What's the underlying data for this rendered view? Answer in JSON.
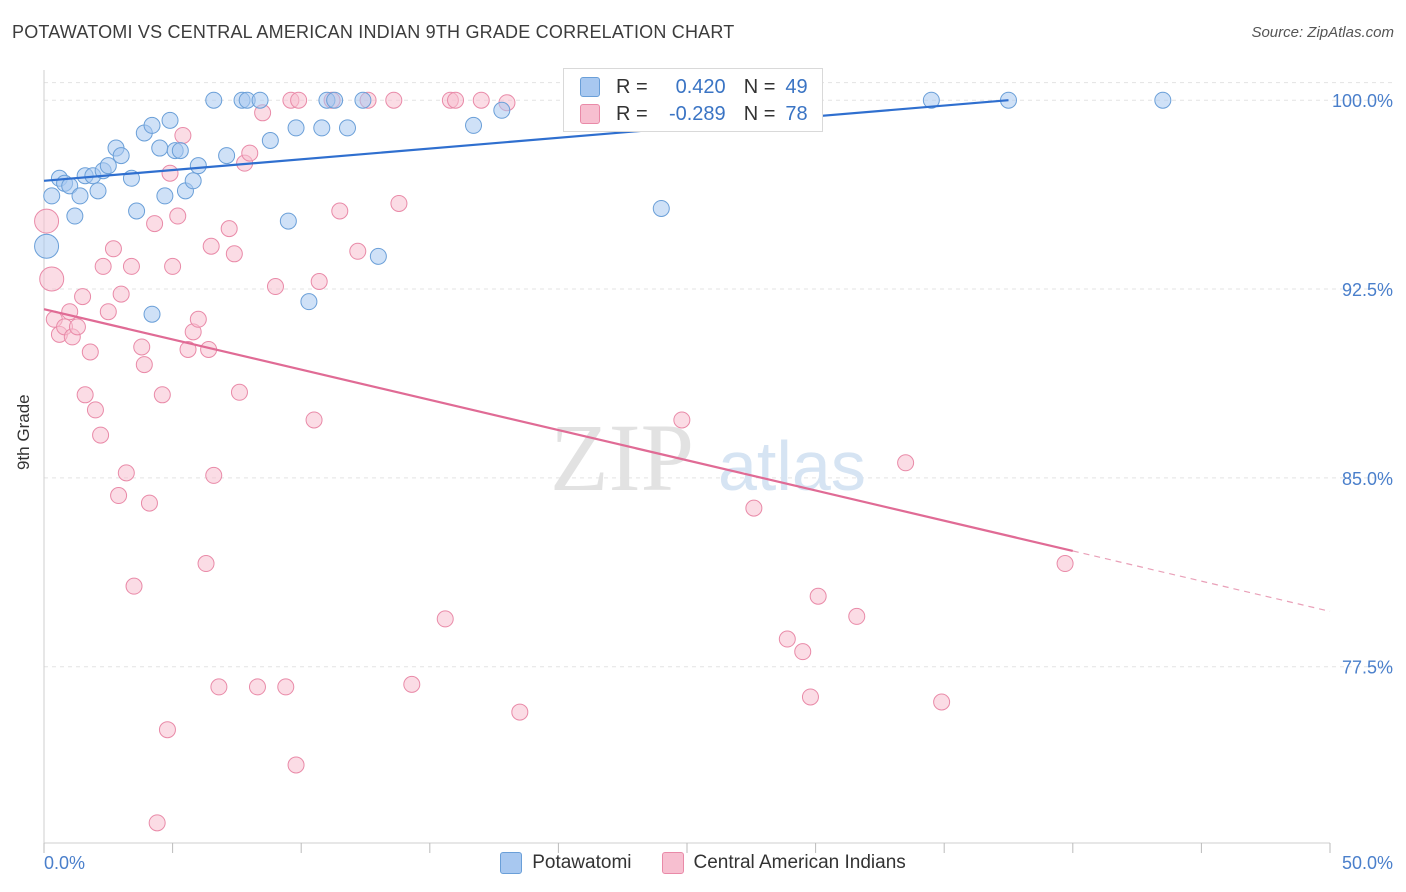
{
  "title": "POTAWATOMI VS CENTRAL AMERICAN INDIAN 9TH GRADE CORRELATION CHART",
  "source": "Source: ZipAtlas.com",
  "watermark": {
    "zip": "ZIP",
    "atlas": "atlas"
  },
  "legend": {
    "r_label": "R =",
    "n_label": "N =",
    "rows": [
      {
        "r": "0.420",
        "n": "49",
        "color": "#a8c8f0",
        "border": "#6a9fd8"
      },
      {
        "r": "-0.289",
        "n": "78",
        "color": "#f7bfd0",
        "border": "#e98aa8"
      }
    ]
  },
  "chart_data": {
    "type": "scatter",
    "title": "POTAWATOMI VS CENTRAL AMERICAN INDIAN 9TH GRADE CORRELATION CHART",
    "xlabel": "",
    "ylabel": "9th Grade",
    "xlim": [
      0,
      50
    ],
    "ylim": [
      70.5,
      101.2
    ],
    "x_tick_labels": [
      "0.0%",
      "50.0%"
    ],
    "y_ticks": [
      77.5,
      85.0,
      92.5,
      100.0
    ],
    "y_tick_labels": [
      "77.5%",
      "85.0%",
      "92.5%",
      "100.0%"
    ],
    "grid": true,
    "series": [
      {
        "name": "Potawatomi",
        "color": "#6a9fd8",
        "fill": "#a8c8f0",
        "trend": {
          "x": [
            0,
            37.5
          ],
          "y": [
            96.8,
            100.0
          ]
        },
        "points": [
          [
            0.1,
            94.2
          ],
          [
            0.3,
            96.2
          ],
          [
            0.6,
            96.9
          ],
          [
            0.8,
            96.7
          ],
          [
            1.0,
            96.6
          ],
          [
            1.2,
            95.4
          ],
          [
            1.4,
            96.2
          ],
          [
            1.6,
            97.0
          ],
          [
            1.9,
            97.0
          ],
          [
            2.1,
            96.4
          ],
          [
            2.3,
            97.2
          ],
          [
            2.5,
            97.4
          ],
          [
            2.8,
            98.1
          ],
          [
            3.0,
            97.8
          ],
          [
            3.4,
            96.9
          ],
          [
            3.6,
            95.6
          ],
          [
            3.9,
            98.7
          ],
          [
            4.2,
            99.0
          ],
          [
            4.5,
            98.1
          ],
          [
            4.7,
            96.2
          ],
          [
            4.9,
            99.2
          ],
          [
            5.1,
            98.0
          ],
          [
            5.3,
            98.0
          ],
          [
            5.5,
            96.4
          ],
          [
            5.8,
            96.8
          ],
          [
            6.0,
            97.4
          ],
          [
            6.6,
            100.0
          ],
          [
            7.1,
            97.8
          ],
          [
            7.7,
            100.0
          ],
          [
            7.9,
            100.0
          ],
          [
            8.4,
            100.0
          ],
          [
            8.8,
            98.4
          ],
          [
            9.5,
            95.2
          ],
          [
            9.8,
            98.9
          ],
          [
            10.3,
            92.0
          ],
          [
            10.8,
            98.9
          ],
          [
            11.0,
            100.0
          ],
          [
            11.8,
            98.9
          ],
          [
            13.0,
            93.8
          ],
          [
            16.7,
            99.0
          ],
          [
            17.8,
            99.6
          ],
          [
            22.3,
            100.0
          ],
          [
            24.0,
            95.7
          ],
          [
            34.5,
            100.0
          ],
          [
            37.5,
            100.0
          ],
          [
            43.5,
            100.0
          ],
          [
            4.2,
            91.5
          ],
          [
            11.3,
            100.0
          ],
          [
            12.4,
            100.0
          ]
        ]
      },
      {
        "name": "Central American Indians",
        "color": "#e98aa8",
        "fill": "#f7bfd0",
        "trend": {
          "x": [
            0,
            40
          ],
          "y": [
            91.7,
            82.1
          ]
        },
        "trend_dashed": {
          "x": [
            40,
            50
          ],
          "y": [
            82.1,
            79.7
          ]
        },
        "points": [
          [
            0.1,
            95.2
          ],
          [
            0.3,
            92.9
          ],
          [
            0.4,
            91.3
          ],
          [
            0.6,
            90.7
          ],
          [
            0.8,
            91.0
          ],
          [
            1.0,
            91.6
          ],
          [
            1.1,
            90.6
          ],
          [
            1.3,
            91.0
          ],
          [
            1.5,
            92.2
          ],
          [
            1.6,
            88.3
          ],
          [
            1.8,
            90.0
          ],
          [
            2.0,
            87.7
          ],
          [
            2.2,
            86.7
          ],
          [
            2.3,
            93.4
          ],
          [
            2.5,
            91.6
          ],
          [
            2.7,
            94.1
          ],
          [
            2.9,
            84.3
          ],
          [
            3.0,
            92.3
          ],
          [
            3.2,
            85.2
          ],
          [
            3.4,
            93.4
          ],
          [
            3.5,
            80.7
          ],
          [
            3.8,
            90.2
          ],
          [
            3.9,
            89.5
          ],
          [
            4.1,
            84.0
          ],
          [
            4.3,
            95.1
          ],
          [
            4.4,
            71.3
          ],
          [
            4.6,
            88.3
          ],
          [
            4.8,
            75.0
          ],
          [
            4.9,
            97.1
          ],
          [
            5.0,
            93.4
          ],
          [
            5.2,
            95.4
          ],
          [
            5.4,
            98.6
          ],
          [
            5.6,
            90.1
          ],
          [
            5.8,
            90.8
          ],
          [
            6.0,
            91.3
          ],
          [
            6.3,
            81.6
          ],
          [
            6.4,
            90.1
          ],
          [
            6.5,
            94.2
          ],
          [
            6.6,
            85.1
          ],
          [
            6.8,
            76.7
          ],
          [
            7.2,
            94.9
          ],
          [
            7.4,
            93.9
          ],
          [
            7.6,
            88.4
          ],
          [
            7.8,
            97.5
          ],
          [
            8.0,
            97.9
          ],
          [
            8.3,
            76.7
          ],
          [
            8.5,
            99.5
          ],
          [
            9.0,
            92.6
          ],
          [
            9.4,
            76.7
          ],
          [
            9.6,
            100.0
          ],
          [
            9.9,
            100.0
          ],
          [
            9.8,
            73.6
          ],
          [
            10.5,
            87.3
          ],
          [
            10.7,
            92.8
          ],
          [
            11.2,
            100.0
          ],
          [
            11.5,
            95.6
          ],
          [
            12.2,
            94.0
          ],
          [
            12.6,
            100.0
          ],
          [
            13.6,
            100.0
          ],
          [
            13.8,
            95.9
          ],
          [
            14.3,
            76.8
          ],
          [
            15.6,
            79.4
          ],
          [
            15.8,
            100.0
          ],
          [
            17.0,
            100.0
          ],
          [
            18.0,
            99.9
          ],
          [
            18.5,
            75.7
          ],
          [
            23.7,
            100.0
          ],
          [
            24.8,
            87.3
          ],
          [
            27.6,
            83.8
          ],
          [
            28.9,
            78.6
          ],
          [
            29.5,
            78.1
          ],
          [
            29.8,
            76.3
          ],
          [
            30.1,
            80.3
          ],
          [
            31.6,
            79.5
          ],
          [
            33.5,
            85.6
          ],
          [
            34.9,
            76.1
          ],
          [
            39.7,
            81.6
          ],
          [
            16.0,
            100.0
          ]
        ]
      }
    ]
  },
  "bottom_legend": [
    {
      "label": "Potawatomi",
      "color": "#a8c8f0",
      "border": "#6a9fd8"
    },
    {
      "label": "Central American Indians",
      "color": "#f7bfd0",
      "border": "#e98aa8"
    }
  ]
}
